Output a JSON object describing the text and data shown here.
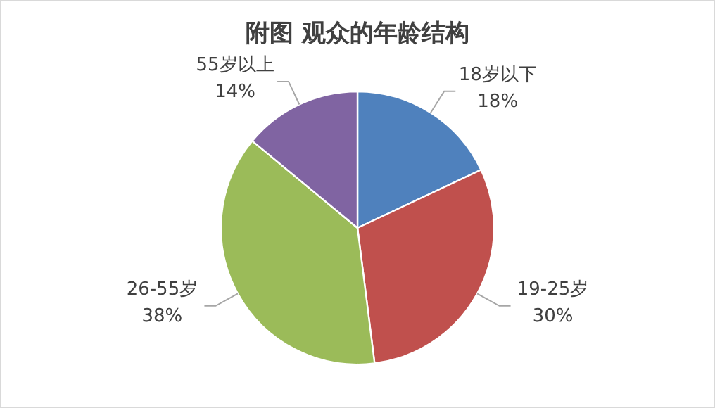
{
  "chart_data": {
    "type": "pie",
    "title": "附图 观众的年龄结构",
    "categories": [
      "18岁以下",
      "19-25岁",
      "26-55岁",
      "55岁以上"
    ],
    "values": [
      18,
      30,
      38,
      14
    ],
    "value_labels": [
      "18%",
      "30%",
      "38%",
      "14%"
    ],
    "colors": [
      "#4f81bd",
      "#c0504d",
      "#9bbb59",
      "#8064a2"
    ]
  }
}
